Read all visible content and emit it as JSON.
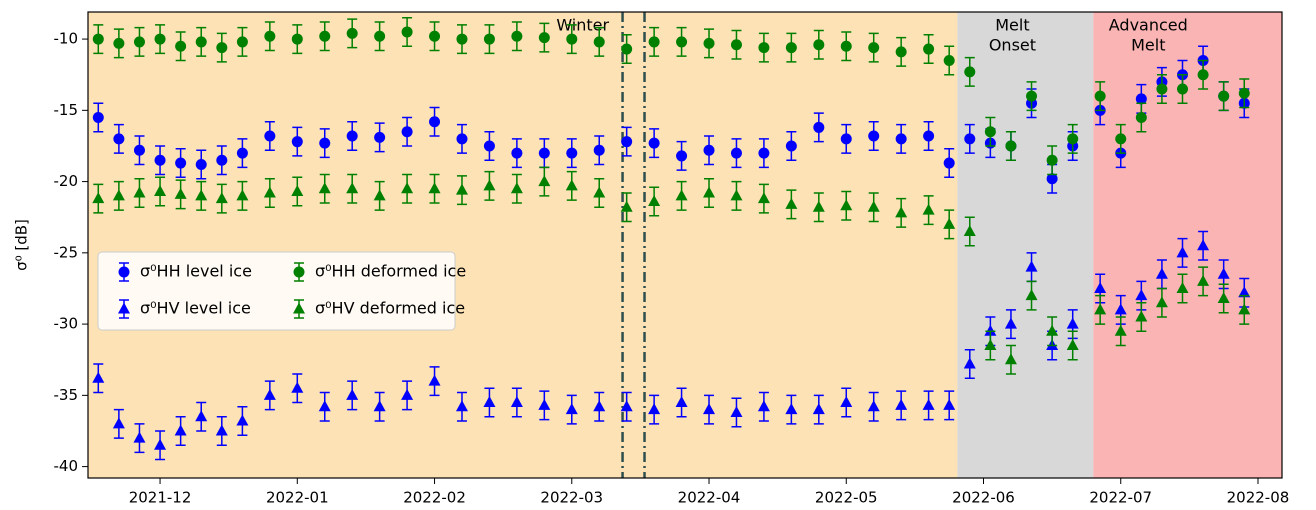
{
  "chart_data": {
    "type": "scatter",
    "ylabel": "σ⁰ [dB]",
    "xlim": [
      -0.525,
      8.175
    ],
    "ylim": [
      -40.8,
      -8.1
    ],
    "xticks": [
      {
        "value": 0,
        "label": "2021-12"
      },
      {
        "value": 1,
        "label": "2022-01"
      },
      {
        "value": 2,
        "label": "2022-02"
      },
      {
        "value": 3,
        "label": "2022-03"
      },
      {
        "value": 4,
        "label": "2022-04"
      },
      {
        "value": 5,
        "label": "2022-05"
      },
      {
        "value": 6,
        "label": "2022-06"
      },
      {
        "value": 7,
        "label": "2022-07"
      },
      {
        "value": 8,
        "label": "2022-08"
      }
    ],
    "yticks": [
      -40,
      -35,
      -30,
      -25,
      -20,
      -15,
      -10
    ],
    "regions": [
      {
        "label_lines": [
          "Winter"
        ],
        "start": -0.525,
        "end": 5.81,
        "color": "#fde2b6",
        "label_color": "#ffa500"
      },
      {
        "label_lines": [
          "Melt",
          "Onset"
        ],
        "start": 5.81,
        "end": 6.8,
        "color": "#d8d8d8",
        "label_color": "#8c8c8c"
      },
      {
        "label_lines": [
          "Advanced",
          "Melt"
        ],
        "start": 6.8,
        "end": 8.175,
        "color": "#fbb4b4",
        "label_color": "#ff0000"
      }
    ],
    "vlines": [
      3.37,
      3.53
    ],
    "vline_color": "#2f4f4f",
    "legend": "center left",
    "x": [
      -0.45,
      -0.3,
      -0.15,
      0,
      0.15,
      0.3,
      0.45,
      0.6,
      0.8,
      1.0,
      1.2,
      1.4,
      1.6,
      1.8,
      2.0,
      2.2,
      2.4,
      2.6,
      2.8,
      3.0,
      3.2,
      3.4,
      3.6,
      3.8,
      4.0,
      4.2,
      4.4,
      4.6,
      4.8,
      5.0,
      5.2,
      5.4,
      5.6,
      5.75,
      5.9,
      6.05,
      6.2,
      6.35,
      6.5,
      6.65,
      6.85,
      7.0,
      7.15,
      7.3,
      7.45,
      7.6,
      7.75,
      7.9
    ],
    "series": [
      {
        "name": "σ⁰HH level ice",
        "color": "#0000ff",
        "marker": "circle",
        "error": 1.0,
        "values": [
          -15.5,
          -17.0,
          -17.8,
          -18.5,
          -18.7,
          -18.8,
          -18.5,
          -18.0,
          -16.8,
          -17.2,
          -17.3,
          -16.8,
          -16.9,
          -16.5,
          -15.8,
          -17.0,
          -17.5,
          -18.0,
          -18.0,
          -18.0,
          -17.8,
          -17.2,
          -17.3,
          -18.2,
          -17.8,
          -18.0,
          -18.0,
          -17.5,
          -16.2,
          -17.0,
          -16.8,
          -17.0,
          -16.8,
          -18.7,
          -17.0,
          -17.3,
          -17.5,
          -14.5,
          -19.8,
          -17.5,
          -15.0,
          -18.0,
          -14.2,
          -13.0,
          -12.5,
          -11.5,
          -14.0,
          -14.5
        ]
      },
      {
        "name": "σ⁰HV level ice",
        "color": "#0000ff",
        "marker": "triangle",
        "error": 1.0,
        "values": [
          -33.8,
          -37.0,
          -38.0,
          -38.5,
          -37.5,
          -36.5,
          -37.5,
          -36.8,
          -35.0,
          -34.5,
          -35.8,
          -35.0,
          -35.8,
          -35.0,
          -34.0,
          -35.8,
          -35.5,
          -35.5,
          -35.7,
          -36.0,
          -35.8,
          -35.8,
          -36.0,
          -35.5,
          -36.0,
          -36.2,
          -35.8,
          -36.0,
          -36.0,
          -35.5,
          -35.8,
          -35.7,
          -35.7,
          -35.7,
          -32.8,
          -30.5,
          -30.0,
          -26.0,
          -31.5,
          -30.0,
          -27.5,
          -29.0,
          -28.0,
          -26.5,
          -25.0,
          -24.5,
          -26.5,
          -27.8
        ]
      },
      {
        "name": "σ⁰HH deformed ice",
        "color": "#008000",
        "marker": "circle",
        "error": 1.0,
        "values": [
          -10.0,
          -10.3,
          -10.2,
          -10.0,
          -10.5,
          -10.2,
          -10.6,
          -10.2,
          -9.8,
          -10.0,
          -9.8,
          -9.6,
          -9.8,
          -9.5,
          -9.8,
          -10.0,
          -10.0,
          -9.8,
          -9.9,
          -10.0,
          -10.2,
          -10.7,
          -10.2,
          -10.2,
          -10.3,
          -10.4,
          -10.6,
          -10.6,
          -10.4,
          -10.5,
          -10.6,
          -10.9,
          -10.7,
          -11.5,
          -12.3,
          -16.5,
          -17.5,
          -14.0,
          -18.5,
          -17.0,
          -14.0,
          -17.0,
          -15.5,
          -13.5,
          -13.5,
          -12.5,
          -14.0,
          -13.8
        ]
      },
      {
        "name": "σ⁰HV deformed ice",
        "color": "#008000",
        "marker": "triangle",
        "error": 1.0,
        "values": [
          -21.2,
          -21.0,
          -20.8,
          -20.7,
          -20.9,
          -21.0,
          -21.2,
          -21.0,
          -20.8,
          -20.7,
          -20.5,
          -20.5,
          -21.0,
          -20.5,
          -20.5,
          -20.6,
          -20.3,
          -20.5,
          -20.0,
          -20.3,
          -20.8,
          -21.8,
          -21.4,
          -21.0,
          -20.8,
          -21.0,
          -21.2,
          -21.6,
          -21.8,
          -21.7,
          -21.8,
          -22.2,
          -22.0,
          -23.0,
          -23.5,
          -31.5,
          -32.5,
          -28.0,
          -30.5,
          -31.5,
          -29.0,
          -30.5,
          -29.5,
          -28.5,
          -27.5,
          -27.0,
          -28.2,
          -29.0
        ]
      }
    ]
  }
}
